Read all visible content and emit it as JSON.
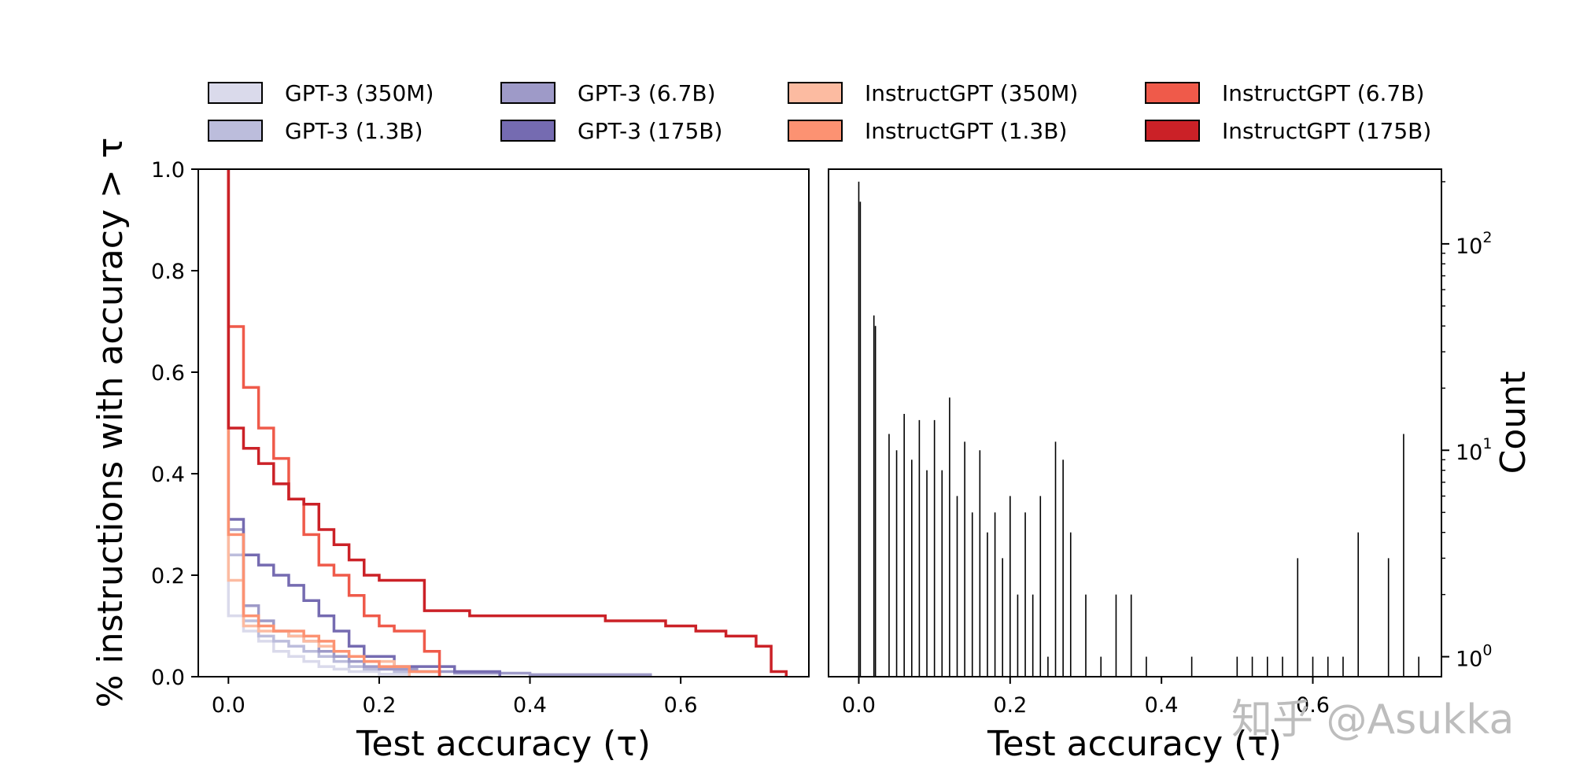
{
  "chart_data": [
    {
      "type": "line",
      "subtype": "step",
      "xlabel": "Test accuracy (τ)",
      "ylabel": "% instructions with accuracy > τ",
      "xlim": [
        -0.04,
        0.77
      ],
      "ylim": [
        0.0,
        1.0
      ],
      "xticks": [
        0.0,
        0.2,
        0.4,
        0.6
      ],
      "xtick_labels": [
        "0.0",
        "0.2",
        "0.4",
        "0.6"
      ],
      "yticks": [
        0.0,
        0.2,
        0.4,
        0.6,
        0.8,
        1.0
      ],
      "ytick_labels": [
        "0.0",
        "0.2",
        "0.4",
        "0.6",
        "0.8",
        "1.0"
      ],
      "legend_position": "top, 4 columns above both panels",
      "series": [
        {
          "name": "GPT-3 (350M)",
          "color": "#dadaeb",
          "x": [
            0,
            0.02,
            0.04,
            0.06,
            0.08,
            0.1,
            0.12,
            0.14,
            0.16,
            0.2,
            0.24
          ],
          "y": [
            0.12,
            0.09,
            0.07,
            0.05,
            0.04,
            0.03,
            0.02,
            0.015,
            0.01,
            0.005,
            0
          ]
        },
        {
          "name": "GPT-3 (1.3B)",
          "color": "#bcbddc",
          "x": [
            0,
            0.02,
            0.04,
            0.06,
            0.08,
            0.1,
            0.12,
            0.14,
            0.16,
            0.18,
            0.22,
            0.28
          ],
          "y": [
            0.24,
            0.11,
            0.08,
            0.07,
            0.06,
            0.05,
            0.04,
            0.03,
            0.02,
            0.015,
            0.01,
            0
          ]
        },
        {
          "name": "GPT-3 (6.7B)",
          "color": "#9e9ac8",
          "x": [
            0,
            0.02,
            0.04,
            0.06,
            0.08,
            0.1,
            0.12,
            0.14,
            0.16,
            0.18,
            0.2,
            0.25,
            0.3,
            0.4,
            0.56
          ],
          "y": [
            0.29,
            0.14,
            0.11,
            0.09,
            0.08,
            0.07,
            0.05,
            0.04,
            0.03,
            0.02,
            0.015,
            0.01,
            0.007,
            0.004,
            0
          ]
        },
        {
          "name": "GPT-3 (175B)",
          "color": "#756bb1",
          "x": [
            0,
            0.02,
            0.04,
            0.06,
            0.08,
            0.1,
            0.12,
            0.14,
            0.16,
            0.18,
            0.22,
            0.3,
            0.36
          ],
          "y": [
            0.31,
            0.24,
            0.22,
            0.2,
            0.18,
            0.15,
            0.12,
            0.09,
            0.06,
            0.04,
            0.02,
            0.01,
            0
          ]
        },
        {
          "name": "InstructGPT (350M)",
          "color": "#fcbba1",
          "x": [
            0,
            0.02,
            0.04,
            0.06,
            0.08,
            0.1,
            0.12,
            0.14,
            0.16,
            0.18,
            0.2,
            0.22,
            0.24
          ],
          "y": [
            0.19,
            0.1,
            0.09,
            0.09,
            0.08,
            0.07,
            0.06,
            0.05,
            0.04,
            0.03,
            0.03,
            0.02,
            0
          ]
        },
        {
          "name": "InstructGPT (1.3B)",
          "color": "#fc9272",
          "x": [
            0,
            0.02,
            0.04,
            0.06,
            0.08,
            0.1,
            0.12,
            0.14,
            0.16,
            0.18,
            0.2,
            0.24,
            0.28
          ],
          "y": [
            0.28,
            0.12,
            0.1,
            0.09,
            0.09,
            0.08,
            0.07,
            0.05,
            0.04,
            0.03,
            0.02,
            0.01,
            0
          ]
        },
        {
          "name": "InstructGPT (6.7B)",
          "color": "#ef5a4a",
          "x": [
            0,
            0.02,
            0.04,
            0.06,
            0.08,
            0.1,
            0.12,
            0.14,
            0.16,
            0.18,
            0.2,
            0.22,
            0.24,
            0.26,
            0.28
          ],
          "y": [
            0.69,
            0.57,
            0.49,
            0.43,
            0.35,
            0.28,
            0.22,
            0.2,
            0.16,
            0.12,
            0.1,
            0.09,
            0.09,
            0.05,
            0
          ]
        },
        {
          "name": "InstructGPT (175B)",
          "color": "#cb2127",
          "x": [
            0,
            0.02,
            0.04,
            0.06,
            0.08,
            0.1,
            0.12,
            0.14,
            0.16,
            0.18,
            0.2,
            0.26,
            0.32,
            0.4,
            0.5,
            0.58,
            0.62,
            0.66,
            0.7,
            0.72,
            0.74
          ],
          "y": [
            0.49,
            0.45,
            0.42,
            0.38,
            0.35,
            0.34,
            0.29,
            0.26,
            0.23,
            0.2,
            0.19,
            0.13,
            0.12,
            0.12,
            0.11,
            0.1,
            0.09,
            0.08,
            0.06,
            0.01,
            0
          ]
        }
      ]
    },
    {
      "type": "bar",
      "subtype": "histogram",
      "xlabel": "Test accuracy (τ)",
      "ylabel": "Count",
      "yscale": "log",
      "xlim": [
        -0.04,
        0.77
      ],
      "ylim": [
        0.8,
        230
      ],
      "xticks": [
        0.0,
        0.2,
        0.4,
        0.6
      ],
      "xtick_labels": [
        "0.0",
        "0.2",
        "0.4",
        "0.6"
      ],
      "yticks": [
        1,
        10,
        100
      ],
      "ytick_labels": [
        {
          "base": "10",
          "exp": "0"
        },
        {
          "base": "10",
          "exp": "1"
        },
        {
          "base": "10",
          "exp": "2"
        }
      ],
      "bars": [
        {
          "x": 0.0,
          "count": 200
        },
        {
          "x": 0.002,
          "count": 160
        },
        {
          "x": 0.02,
          "count": 45
        },
        {
          "x": 0.022,
          "count": 40
        },
        {
          "x": 0.04,
          "count": 12
        },
        {
          "x": 0.05,
          "count": 10
        },
        {
          "x": 0.06,
          "count": 15
        },
        {
          "x": 0.07,
          "count": 9
        },
        {
          "x": 0.08,
          "count": 14
        },
        {
          "x": 0.09,
          "count": 8
        },
        {
          "x": 0.1,
          "count": 14
        },
        {
          "x": 0.11,
          "count": 8
        },
        {
          "x": 0.12,
          "count": 18
        },
        {
          "x": 0.13,
          "count": 6
        },
        {
          "x": 0.14,
          "count": 11
        },
        {
          "x": 0.15,
          "count": 5
        },
        {
          "x": 0.16,
          "count": 10
        },
        {
          "x": 0.17,
          "count": 4
        },
        {
          "x": 0.18,
          "count": 5
        },
        {
          "x": 0.19,
          "count": 3
        },
        {
          "x": 0.2,
          "count": 6
        },
        {
          "x": 0.21,
          "count": 2
        },
        {
          "x": 0.22,
          "count": 5
        },
        {
          "x": 0.23,
          "count": 2
        },
        {
          "x": 0.24,
          "count": 6
        },
        {
          "x": 0.25,
          "count": 1
        },
        {
          "x": 0.26,
          "count": 11
        },
        {
          "x": 0.27,
          "count": 9
        },
        {
          "x": 0.28,
          "count": 4
        },
        {
          "x": 0.3,
          "count": 2
        },
        {
          "x": 0.32,
          "count": 1
        },
        {
          "x": 0.34,
          "count": 2
        },
        {
          "x": 0.36,
          "count": 2
        },
        {
          "x": 0.38,
          "count": 1
        },
        {
          "x": 0.44,
          "count": 1
        },
        {
          "x": 0.5,
          "count": 1
        },
        {
          "x": 0.52,
          "count": 1
        },
        {
          "x": 0.54,
          "count": 1
        },
        {
          "x": 0.56,
          "count": 1
        },
        {
          "x": 0.58,
          "count": 3
        },
        {
          "x": 0.6,
          "count": 1
        },
        {
          "x": 0.62,
          "count": 1
        },
        {
          "x": 0.64,
          "count": 1
        },
        {
          "x": 0.66,
          "count": 4
        },
        {
          "x": 0.7,
          "count": 3
        },
        {
          "x": 0.72,
          "count": 12
        },
        {
          "x": 0.74,
          "count": 1
        }
      ]
    }
  ],
  "watermark": "知乎 @Asukka"
}
